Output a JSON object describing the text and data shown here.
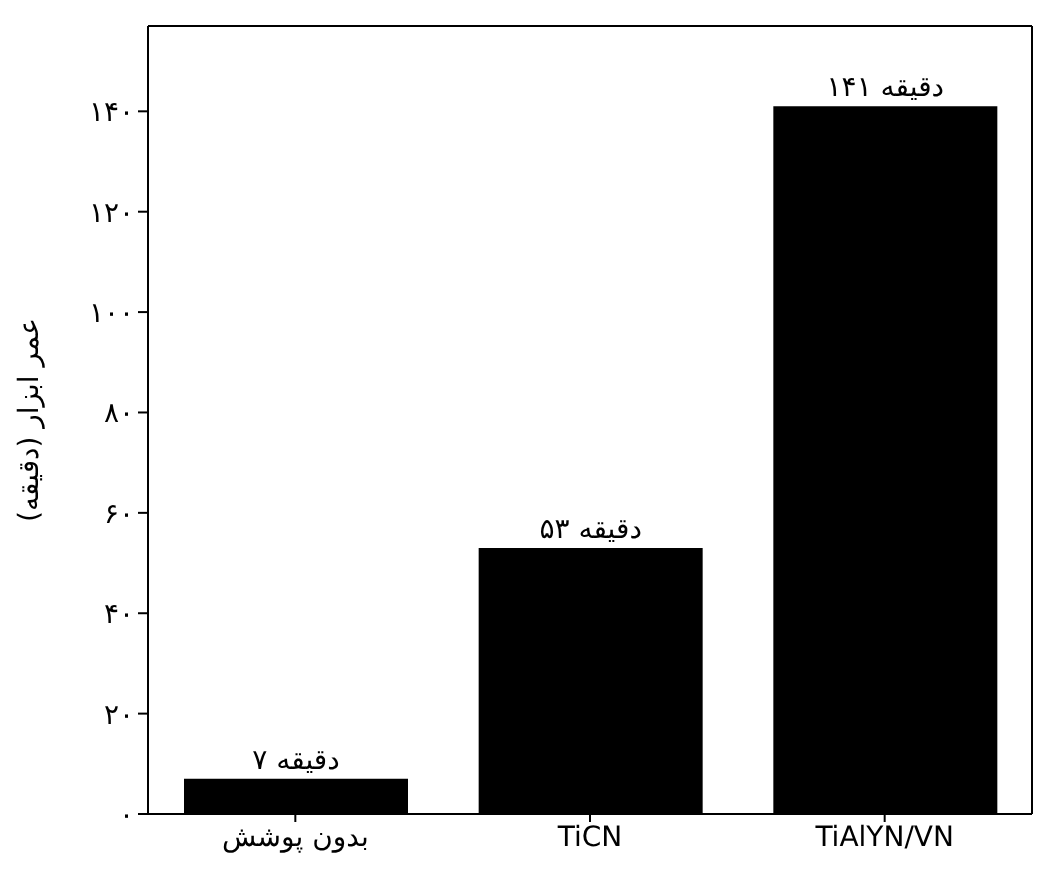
{
  "chart_data": {
    "type": "bar",
    "ylabel": "عمر ابزار (دقیقه)",
    "categories": [
      "بدون پوشش",
      "TiCN",
      "TiAlYN/VN"
    ],
    "values": [
      7,
      53,
      141
    ],
    "color": "#000000",
    "value_labels": [
      "۷ دقیقه",
      "۵۳ دقیقه",
      "۱۴۱ دقیقه"
    ],
    "ylim": [
      0,
      157
    ],
    "yticks": [
      {
        "value": 0,
        "label": "۰"
      },
      {
        "value": 20,
        "label": "۲۰"
      },
      {
        "value": 40,
        "label": "۴۰"
      },
      {
        "value": 60,
        "label": "۶۰"
      },
      {
        "value": 80,
        "label": "۸۰"
      },
      {
        "value": 100,
        "label": "۱۰۰"
      },
      {
        "value": 120,
        "label": "۱۲۰"
      },
      {
        "value": 140,
        "label": "۱۴۰"
      }
    ],
    "grid": false,
    "legend": false
  }
}
